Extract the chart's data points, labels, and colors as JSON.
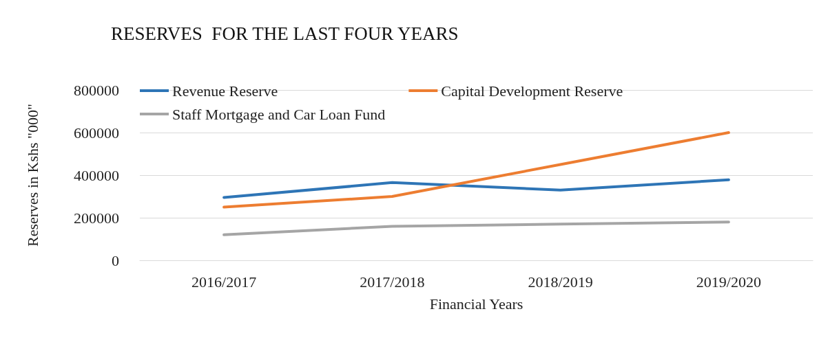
{
  "chart_data": {
    "type": "line",
    "title": "RESERVES  FOR THE LAST FOUR YEARS",
    "xlabel": "Financial Years",
    "ylabel": "Reserves in Kshs \"000\"",
    "categories": [
      "2016/2017",
      "2017/2018",
      "2018/2019",
      "2019/2020"
    ],
    "series": [
      {
        "name": "Revenue Reserve",
        "color": "#2e75b6",
        "values": [
          295000,
          365000,
          330000,
          378000
        ]
      },
      {
        "name": "Capital Development Reserve",
        "color": "#ed7d31",
        "values": [
          250000,
          300000,
          450000,
          600000
        ]
      },
      {
        "name": "Staff Mortgage and Car Loan Fund",
        "color": "#a5a5a5",
        "values": [
          120000,
          160000,
          170000,
          180000
        ]
      }
    ],
    "ylim": [
      0,
      800000
    ],
    "yticks": [
      0,
      200000,
      400000,
      600000,
      800000
    ],
    "grid": "y",
    "legend": "top",
    "marker": "none",
    "line_style": "solid"
  }
}
